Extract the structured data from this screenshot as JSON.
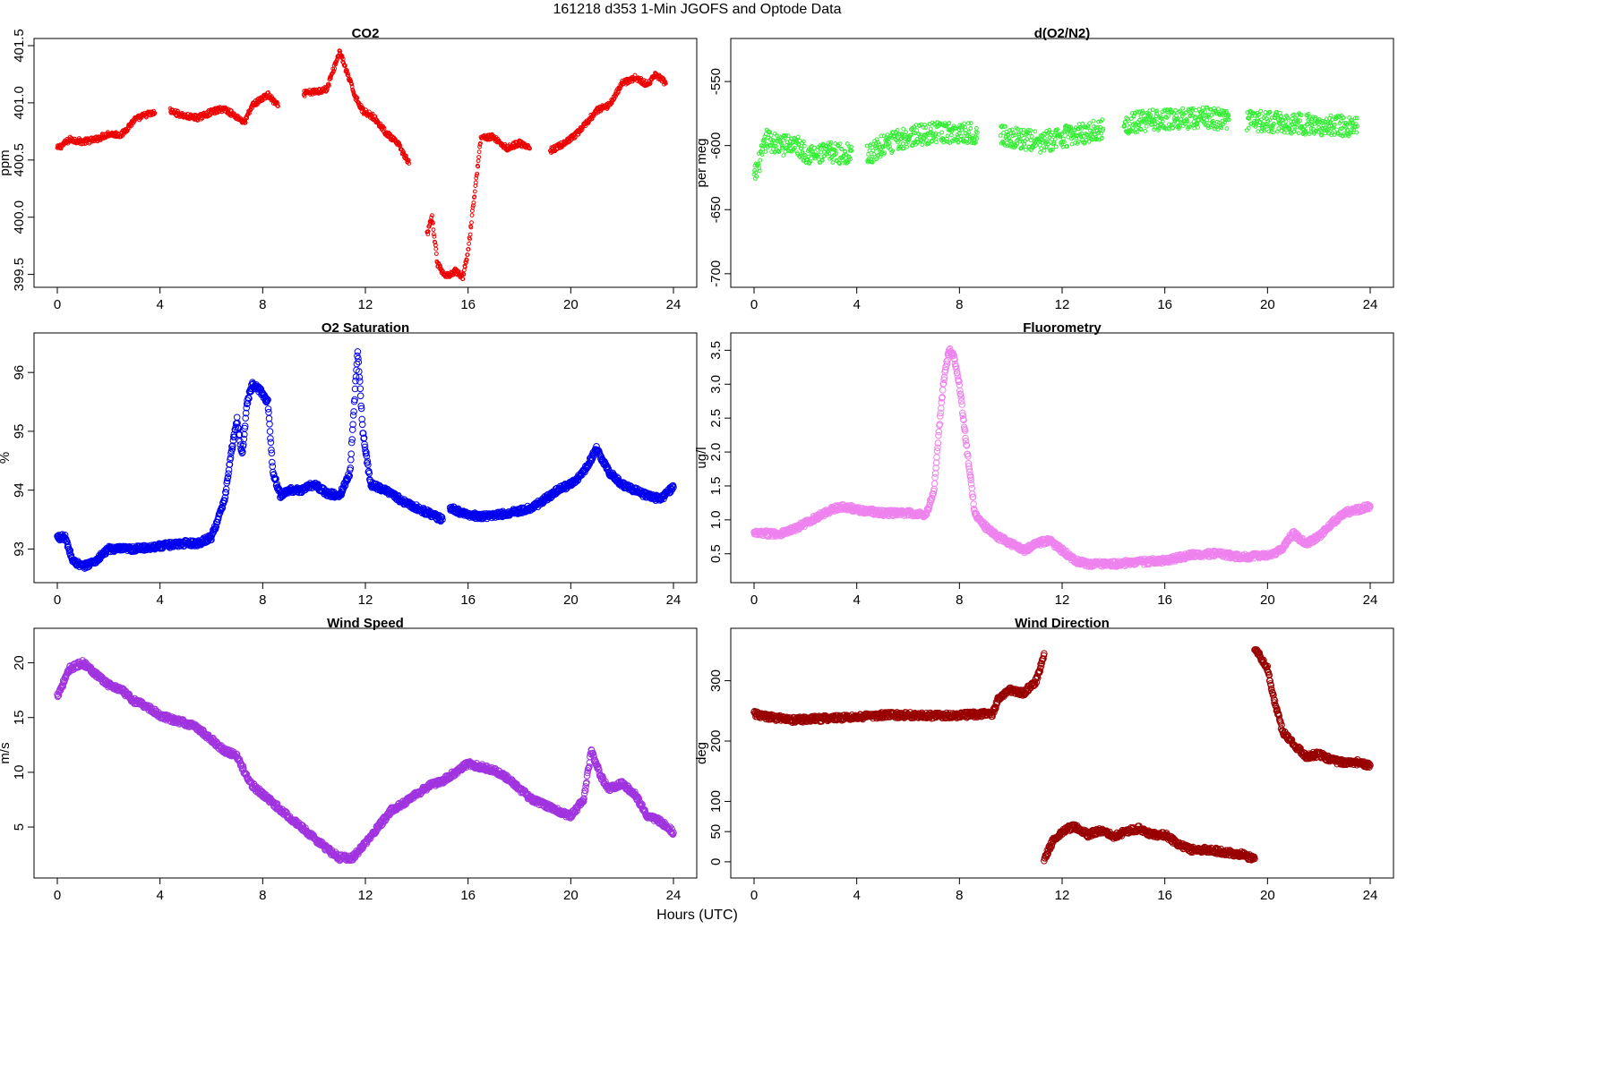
{
  "figure": {
    "title": "161218   d353   1-Min  JGOFS and Optode Data",
    "xlabel": "Hours (UTC)"
  },
  "chart_data": [
    {
      "type": "scatter",
      "title": "CO2",
      "xlabel": "",
      "ylabel": "ppm",
      "color": "#ee0000",
      "marker_size": "small",
      "xlim": [
        0,
        24
      ],
      "ylim": [
        399.45,
        401.5
      ],
      "xticks": [
        "0",
        "4",
        "8",
        "12",
        "16",
        "20",
        "24"
      ],
      "yticks": [
        "399.5",
        "400.0",
        "400.5",
        "401.0",
        "401.5"
      ],
      "segments": [
        [
          [
            0.0,
            400.6
          ],
          [
            0.5,
            400.68
          ],
          [
            1.0,
            400.66
          ],
          [
            1.5,
            400.68
          ],
          [
            2.0,
            400.73
          ],
          [
            2.5,
            400.72
          ],
          [
            3.0,
            400.85
          ],
          [
            3.5,
            400.9
          ],
          [
            3.8,
            400.91
          ]
        ],
        [
          [
            4.4,
            400.93
          ],
          [
            5.0,
            400.88
          ],
          [
            5.5,
            400.87
          ],
          [
            6.0,
            400.92
          ],
          [
            6.5,
            400.95
          ],
          [
            7.3,
            400.83
          ],
          [
            7.6,
            400.98
          ],
          [
            8.2,
            401.07
          ],
          [
            8.6,
            400.97
          ]
        ],
        [
          [
            9.6,
            401.08
          ],
          [
            10.1,
            401.1
          ],
          [
            10.5,
            401.12
          ],
          [
            10.8,
            401.32
          ],
          [
            11.0,
            401.45
          ],
          [
            11.3,
            401.25
          ],
          [
            11.6,
            401.06
          ],
          [
            11.9,
            400.93
          ],
          [
            12.3,
            400.88
          ],
          [
            12.8,
            400.74
          ],
          [
            13.3,
            400.63
          ],
          [
            13.7,
            400.47
          ]
        ],
        [
          [
            14.4,
            399.85
          ],
          [
            14.6,
            400.0
          ],
          [
            14.8,
            399.6
          ],
          [
            15.1,
            399.48
          ],
          [
            15.5,
            399.53
          ],
          [
            15.8,
            399.48
          ],
          [
            16.0,
            399.7
          ],
          [
            16.3,
            400.3
          ],
          [
            16.5,
            400.7
          ],
          [
            17.0,
            400.7
          ],
          [
            17.5,
            400.6
          ],
          [
            18.0,
            400.65
          ],
          [
            18.4,
            400.6
          ]
        ],
        [
          [
            19.2,
            400.58
          ],
          [
            19.8,
            400.65
          ],
          [
            20.2,
            400.72
          ],
          [
            20.6,
            400.82
          ],
          [
            21.0,
            400.93
          ],
          [
            21.5,
            400.98
          ],
          [
            22.0,
            401.17
          ],
          [
            22.5,
            401.22
          ],
          [
            23.0,
            401.16
          ],
          [
            23.3,
            401.25
          ],
          [
            23.7,
            401.17
          ]
        ]
      ]
    },
    {
      "type": "scatter",
      "title": "d(O2/N2)",
      "xlabel": "",
      "ylabel": "per meg",
      "color": "#33ee33",
      "marker_size": "small",
      "xlim": [
        0,
        24
      ],
      "ylim": [
        -705,
        -522
      ],
      "xticks": [
        "0",
        "4",
        "8",
        "12",
        "16",
        "20",
        "24"
      ],
      "yticks": [
        "-700",
        "-650",
        "-600",
        "-550"
      ],
      "segments": [
        [
          [
            0.0,
            -625
          ],
          [
            0.5,
            -595
          ],
          [
            1.0,
            -600
          ],
          [
            1.5,
            -598
          ],
          [
            2.0,
            -605
          ],
          [
            2.5,
            -608
          ],
          [
            3.0,
            -605
          ],
          [
            3.5,
            -607
          ],
          [
            3.8,
            -604
          ]
        ],
        [
          [
            4.4,
            -608
          ],
          [
            5.0,
            -600
          ],
          [
            6.0,
            -593
          ],
          [
            7.0,
            -590
          ],
          [
            8.0,
            -590
          ],
          [
            8.7,
            -590
          ]
        ],
        [
          [
            9.6,
            -592
          ],
          [
            10.5,
            -595
          ],
          [
            11.2,
            -598
          ],
          [
            12.0,
            -593
          ],
          [
            13.0,
            -590
          ],
          [
            13.6,
            -587
          ]
        ],
        [
          [
            14.4,
            -583
          ],
          [
            15.5,
            -580
          ],
          [
            16.5,
            -579
          ],
          [
            17.5,
            -578
          ],
          [
            18.5,
            -580
          ]
        ],
        [
          [
            19.2,
            -580
          ],
          [
            20.5,
            -582
          ],
          [
            22.0,
            -584
          ],
          [
            23.5,
            -585
          ]
        ]
      ]
    },
    {
      "type": "scatter",
      "title": "O2 Saturation",
      "xlabel": "",
      "ylabel": "%",
      "color": "#0000ee",
      "marker_size": "large",
      "xlim": [
        0,
        24
      ],
      "ylim": [
        92.55,
        96.55
      ],
      "xticks": [
        "0",
        "4",
        "8",
        "12",
        "16",
        "20",
        "24"
      ],
      "yticks": [
        "93",
        "94",
        "95",
        "96"
      ],
      "segments": [
        [
          [
            0.0,
            93.2
          ],
          [
            0.3,
            93.2
          ],
          [
            0.6,
            92.8
          ],
          [
            1.0,
            92.7
          ],
          [
            1.5,
            92.8
          ],
          [
            2.0,
            93.0
          ],
          [
            3.0,
            93.0
          ],
          [
            4.0,
            93.05
          ],
          [
            5.0,
            93.1
          ],
          [
            5.5,
            93.1
          ],
          [
            6.0,
            93.2
          ],
          [
            6.5,
            93.8
          ],
          [
            6.8,
            94.7
          ],
          [
            7.0,
            95.2
          ],
          [
            7.2,
            94.6
          ],
          [
            7.4,
            95.5
          ],
          [
            7.6,
            95.8
          ],
          [
            7.9,
            95.7
          ],
          [
            8.2,
            95.5
          ],
          [
            8.4,
            94.3
          ],
          [
            8.7,
            93.9
          ],
          [
            9.0,
            94.0
          ],
          [
            9.5,
            94.0
          ],
          [
            10.0,
            94.1
          ],
          [
            10.5,
            93.95
          ],
          [
            11.0,
            93.9
          ],
          [
            11.4,
            94.3
          ],
          [
            11.7,
            96.4
          ],
          [
            11.9,
            95.0
          ],
          [
            12.2,
            94.1
          ],
          [
            12.8,
            94.0
          ],
          [
            13.5,
            93.8
          ],
          [
            14.0,
            93.7
          ],
          [
            14.5,
            93.6
          ],
          [
            15.0,
            93.5
          ]
        ],
        [
          [
            15.3,
            93.7
          ],
          [
            15.8,
            93.6
          ],
          [
            16.5,
            93.55
          ],
          [
            17.5,
            93.6
          ],
          [
            18.5,
            93.7
          ],
          [
            19.0,
            93.85
          ],
          [
            19.5,
            94.0
          ],
          [
            20.0,
            94.1
          ],
          [
            20.5,
            94.3
          ],
          [
            21.0,
            94.7
          ],
          [
            21.5,
            94.3
          ],
          [
            22.0,
            94.1
          ],
          [
            22.5,
            94.0
          ],
          [
            23.0,
            93.9
          ],
          [
            23.5,
            93.85
          ],
          [
            24.0,
            94.05
          ]
        ]
      ]
    },
    {
      "type": "scatter",
      "title": "Fluorometry",
      "xlabel": "",
      "ylabel": "ug/l",
      "color": "#ee82ee",
      "marker_size": "large",
      "xlim": [
        0,
        24
      ],
      "ylim": [
        0.18,
        3.65
      ],
      "xticks": [
        "0",
        "4",
        "8",
        "12",
        "16",
        "20",
        "24"
      ],
      "yticks": [
        "0.5",
        "1.0",
        "1.5",
        "2.0",
        "2.5",
        "3.0",
        "3.5"
      ],
      "segments": [
        [
          [
            0.0,
            0.8
          ],
          [
            1.0,
            0.8
          ],
          [
            1.5,
            0.85
          ],
          [
            2.0,
            0.95
          ],
          [
            2.5,
            1.05
          ],
          [
            3.0,
            1.15
          ],
          [
            3.5,
            1.2
          ],
          [
            4.0,
            1.15
          ],
          [
            5.0,
            1.1
          ],
          [
            6.0,
            1.1
          ],
          [
            6.7,
            1.08
          ],
          [
            7.0,
            1.4
          ],
          [
            7.2,
            2.3
          ],
          [
            7.4,
            3.1
          ],
          [
            7.6,
            3.5
          ],
          [
            7.8,
            3.4
          ],
          [
            8.0,
            3.0
          ],
          [
            8.3,
            2.0
          ],
          [
            8.6,
            1.1
          ],
          [
            9.0,
            0.9
          ],
          [
            9.5,
            0.75
          ],
          [
            10.0,
            0.65
          ],
          [
            10.5,
            0.55
          ],
          [
            11.0,
            0.65
          ],
          [
            11.5,
            0.7
          ],
          [
            12.0,
            0.55
          ],
          [
            12.5,
            0.4
          ],
          [
            13.0,
            0.35
          ],
          [
            14.0,
            0.35
          ],
          [
            15.0,
            0.38
          ],
          [
            16.0,
            0.4
          ],
          [
            17.0,
            0.48
          ],
          [
            18.0,
            0.5
          ],
          [
            19.0,
            0.45
          ],
          [
            20.0,
            0.48
          ],
          [
            20.5,
            0.55
          ],
          [
            21.0,
            0.8
          ],
          [
            21.5,
            0.65
          ],
          [
            22.0,
            0.75
          ],
          [
            22.5,
            0.95
          ],
          [
            23.0,
            1.1
          ],
          [
            23.5,
            1.15
          ],
          [
            24.0,
            1.2
          ]
        ]
      ]
    },
    {
      "type": "scatter",
      "title": "Wind Speed",
      "xlabel": "",
      "ylabel": "m/s",
      "color": "#a033e0",
      "marker_size": "large",
      "xlim": [
        0,
        24
      ],
      "ylim": [
        1,
        22.5
      ],
      "xticks": [
        "0",
        "4",
        "8",
        "12",
        "16",
        "20",
        "24"
      ],
      "yticks": [
        "5",
        "10",
        "15",
        "20"
      ],
      "segments": [
        [
          [
            0.0,
            17.0
          ],
          [
            0.5,
            19.5
          ],
          [
            1.0,
            20.0
          ],
          [
            1.5,
            19.0
          ],
          [
            2.0,
            18.0
          ],
          [
            2.5,
            17.5
          ],
          [
            3.0,
            16.5
          ],
          [
            3.5,
            16.0
          ],
          [
            4.0,
            15.2
          ],
          [
            4.5,
            14.8
          ],
          [
            5.0,
            14.5
          ],
          [
            5.5,
            14.0
          ],
          [
            6.0,
            13.0
          ],
          [
            6.5,
            12.0
          ],
          [
            7.0,
            11.5
          ],
          [
            7.5,
            9.0
          ],
          [
            8.0,
            8.0
          ],
          [
            8.5,
            7.0
          ],
          [
            9.0,
            6.0
          ],
          [
            9.5,
            5.0
          ],
          [
            10.0,
            4.0
          ],
          [
            10.5,
            3.0
          ],
          [
            11.0,
            2.2
          ],
          [
            11.5,
            2.2
          ],
          [
            12.0,
            3.5
          ],
          [
            12.5,
            5.0
          ],
          [
            13.0,
            6.5
          ],
          [
            13.5,
            7.2
          ],
          [
            14.0,
            8.0
          ],
          [
            14.5,
            8.8
          ],
          [
            15.0,
            9.2
          ],
          [
            15.5,
            10.0
          ],
          [
            16.0,
            10.8
          ],
          [
            16.5,
            10.5
          ],
          [
            17.0,
            10.2
          ],
          [
            17.5,
            9.5
          ],
          [
            18.0,
            8.5
          ],
          [
            18.5,
            7.5
          ],
          [
            19.0,
            7.0
          ],
          [
            19.5,
            6.5
          ],
          [
            20.0,
            6.0
          ],
          [
            20.5,
            7.5
          ],
          [
            20.8,
            12.0
          ],
          [
            21.2,
            9.5
          ],
          [
            21.5,
            8.5
          ],
          [
            22.0,
            9.0
          ],
          [
            22.5,
            8.0
          ],
          [
            23.0,
            6.0
          ],
          [
            23.5,
            5.5
          ],
          [
            24.0,
            4.5
          ]
        ]
      ]
    },
    {
      "type": "scatter",
      "title": "Wind Direction",
      "xlabel": "",
      "ylabel": "deg",
      "color": "#990000",
      "marker_size": "large",
      "xlim": [
        0,
        24
      ],
      "ylim": [
        -15,
        375
      ],
      "xticks": [
        "0",
        "4",
        "8",
        "12",
        "16",
        "20",
        "24"
      ],
      "yticks": [
        "0",
        "50",
        "100",
        "200",
        "300"
      ],
      "segments": [
        [
          [
            0.0,
            245
          ],
          [
            0.5,
            240
          ],
          [
            1.0,
            238
          ],
          [
            1.5,
            235
          ],
          [
            2.0,
            236
          ],
          [
            3.0,
            238
          ],
          [
            4.0,
            240
          ],
          [
            5.0,
            243
          ],
          [
            6.0,
            243
          ],
          [
            7.0,
            242
          ],
          [
            8.0,
            243
          ],
          [
            9.0,
            245
          ],
          [
            9.3,
            245
          ],
          [
            9.5,
            270
          ],
          [
            10.0,
            285
          ],
          [
            10.5,
            280
          ],
          [
            11.0,
            300
          ],
          [
            11.3,
            345
          ]
        ],
        [
          [
            11.3,
            5
          ],
          [
            11.7,
            40
          ],
          [
            12.2,
            55
          ],
          [
            12.5,
            58
          ],
          [
            13.0,
            45
          ],
          [
            13.5,
            52
          ],
          [
            14.0,
            42
          ],
          [
            14.5,
            50
          ],
          [
            15.0,
            55
          ],
          [
            15.5,
            45
          ],
          [
            16.0,
            45
          ],
          [
            16.5,
            30
          ],
          [
            17.0,
            20
          ],
          [
            17.5,
            20
          ],
          [
            18.0,
            18
          ],
          [
            18.5,
            15
          ],
          [
            19.0,
            12
          ],
          [
            19.5,
            5
          ]
        ],
        [
          [
            19.5,
            355
          ],
          [
            20.0,
            320
          ],
          [
            20.3,
            260
          ],
          [
            20.6,
            215
          ],
          [
            21.0,
            195
          ],
          [
            21.5,
            175
          ],
          [
            22.0,
            178
          ],
          [
            22.5,
            168
          ],
          [
            23.0,
            165
          ],
          [
            23.5,
            165
          ],
          [
            24.0,
            160
          ]
        ]
      ]
    }
  ]
}
